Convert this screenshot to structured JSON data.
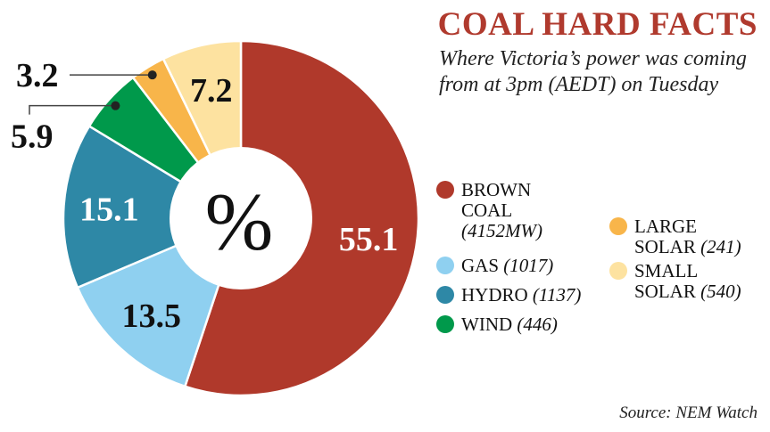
{
  "chart_data": {
    "type": "pie",
    "variant": "donut",
    "title": "COAL HARD FACTS",
    "subtitle": "Where Victoria’s power was coming from at 3pm (AEDT) on Tuesday",
    "center_label": "%",
    "unit": "%",
    "slices": [
      {
        "name": "BROWN COAL",
        "value": 55.1,
        "label": "55.1",
        "mw": "(4152MW)",
        "color": "#b0392b",
        "label_color": "#ffffff"
      },
      {
        "name": "GAS",
        "value": 13.5,
        "label": "13.5",
        "mw": "(1017)",
        "color": "#8fd0f0",
        "label_color": "#111111"
      },
      {
        "name": "HYDRO",
        "value": 15.1,
        "label": "15.1",
        "mw": "(1137)",
        "color": "#2e88a6",
        "label_color": "#ffffff"
      },
      {
        "name": "WIND",
        "value": 5.9,
        "label": "5.9",
        "mw": "(446)",
        "color": "#00994b",
        "label_color": "#111111"
      },
      {
        "name": "LARGE SOLAR",
        "value": 3.2,
        "label": "3.2",
        "mw": "(241)",
        "color": "#f8b54a",
        "label_color": "#111111"
      },
      {
        "name": "SMALL SOLAR",
        "value": 7.2,
        "label": "7.2",
        "mw": "(540)",
        "color": "#fde2a0",
        "label_color": "#111111"
      }
    ],
    "legend_position": "right",
    "source": "Source: NEM Watch"
  }
}
